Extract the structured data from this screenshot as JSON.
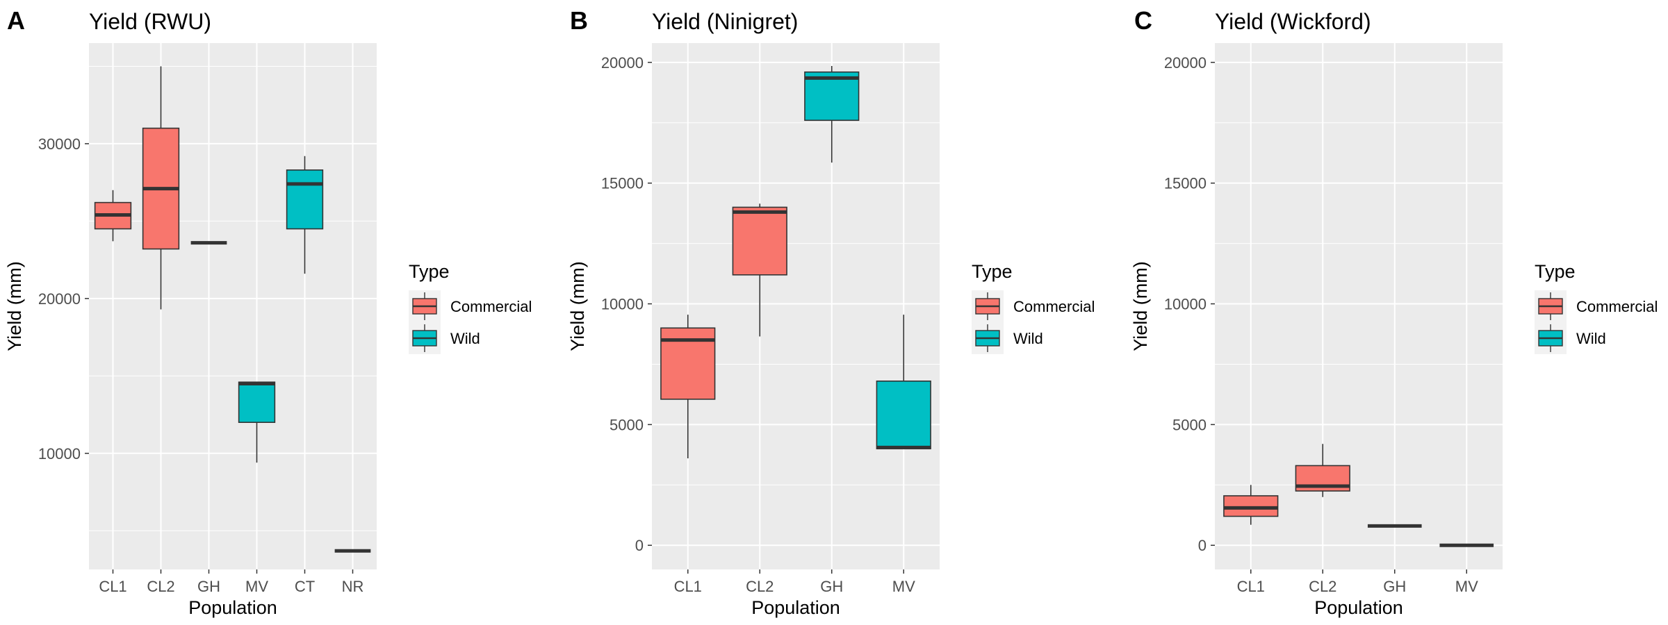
{
  "chart_data": [
    {
      "panel": "A",
      "type": "box",
      "title": "Yield (RWU)",
      "xlabel": "Population",
      "ylabel": "Yield (mm)",
      "categories": [
        "CL1",
        "CL2",
        "GH",
        "MV",
        "CT",
        "NR"
      ],
      "yticks": [
        10000,
        20000,
        30000
      ],
      "ylim": [
        2500,
        36500
      ],
      "boxes": [
        {
          "category": "CL1",
          "group": "Commercial",
          "min": 23700,
          "q1": 24500,
          "median": 25400,
          "q3": 26200,
          "max": 27000
        },
        {
          "category": "CL2",
          "group": "Commercial",
          "min": 19300,
          "q1": 23200,
          "median": 27100,
          "q3": 31000,
          "max": 35000
        },
        {
          "category": "GH",
          "group": "Commercial",
          "min": 23600,
          "q1": 23600,
          "median": 23600,
          "q3": 23600,
          "max": 23600
        },
        {
          "category": "MV",
          "group": "Wild",
          "min": 9400,
          "q1": 12000,
          "median": 14500,
          "q3": 14600,
          "max": 14600
        },
        {
          "category": "CT",
          "group": "Wild",
          "min": 21600,
          "q1": 24500,
          "median": 27400,
          "q3": 28300,
          "max": 29200
        },
        {
          "category": "NR",
          "group": "Wild",
          "min": 3700,
          "q1": 3700,
          "median": 3700,
          "q3": 3700,
          "max": 3700
        }
      ]
    },
    {
      "panel": "B",
      "type": "box",
      "title": "Yield (Ninigret)",
      "xlabel": "Population",
      "ylabel": "Yield (mm)",
      "categories": [
        "CL1",
        "CL2",
        "GH",
        "MV"
      ],
      "yticks": [
        0,
        5000,
        10000,
        15000,
        20000
      ],
      "ylim": [
        -1000,
        20800
      ],
      "boxes": [
        {
          "category": "CL1",
          "group": "Commercial",
          "min": 3600,
          "q1": 6050,
          "median": 8500,
          "q3": 9000,
          "max": 9550
        },
        {
          "category": "CL2",
          "group": "Commercial",
          "min": 8650,
          "q1": 11200,
          "median": 13800,
          "q3": 14000,
          "max": 14150
        },
        {
          "category": "GH",
          "group": "Wild",
          "min": 15850,
          "q1": 17600,
          "median": 19350,
          "q3": 19600,
          "max": 19850
        },
        {
          "category": "MV",
          "group": "Wild",
          "min": 4000,
          "q1": 4000,
          "median": 4050,
          "q3": 6800,
          "max": 9550
        }
      ]
    },
    {
      "panel": "C",
      "type": "box",
      "title": "Yield (Wickford)",
      "xlabel": "Population",
      "ylabel": "Yield (mm)",
      "categories": [
        "CL1",
        "CL2",
        "GH",
        "MV"
      ],
      "yticks": [
        0,
        5000,
        10000,
        15000,
        20000
      ],
      "ylim": [
        -1000,
        20800
      ],
      "boxes": [
        {
          "category": "CL1",
          "group": "Commercial",
          "min": 850,
          "q1": 1200,
          "median": 1550,
          "q3": 2050,
          "max": 2500
        },
        {
          "category": "CL2",
          "group": "Commercial",
          "min": 2000,
          "q1": 2250,
          "median": 2450,
          "q3": 3300,
          "max": 4200
        },
        {
          "category": "GH",
          "group": "Commercial",
          "min": 800,
          "q1": 800,
          "median": 800,
          "q3": 800,
          "max": 800
        },
        {
          "category": "MV",
          "group": "Commercial",
          "min": 0,
          "q1": 0,
          "median": 0,
          "q3": 0,
          "max": 0
        }
      ]
    }
  ],
  "legend": {
    "title": "Type",
    "items": [
      {
        "label": "Commercial",
        "color": "#f8766d"
      },
      {
        "label": "Wild",
        "color": "#00bfc4"
      }
    ]
  },
  "style": {
    "panel_background": "#ebebeb",
    "grid_color": "#ffffff",
    "box_outline": "#333333",
    "commercial_color": "#f8766d",
    "wild_color": "#00bfc4"
  }
}
